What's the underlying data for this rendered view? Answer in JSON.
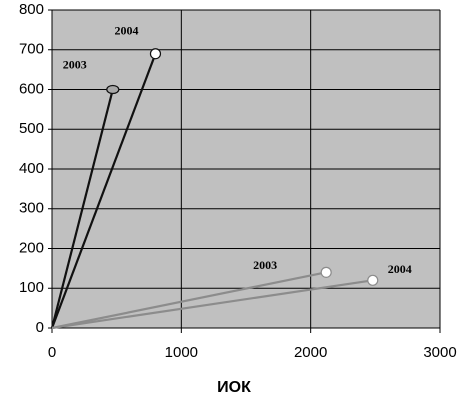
{
  "chart_data": {
    "type": "line",
    "x_label": "ИОК",
    "series": [
      {
        "name": "2003",
        "color": "#111111",
        "marker_fill": "#a8a8a8",
        "x": [
          0,
          470
        ],
        "values": [
          0,
          600
        ]
      },
      {
        "name": "2004",
        "color": "#111111",
        "marker_fill": "#ffffff",
        "x": [
          0,
          800
        ],
        "values": [
          0,
          690
        ]
      },
      {
        "name": "2003",
        "color": "#8c8c8c",
        "marker_fill": "#ffffff",
        "x": [
          0,
          2120
        ],
        "values": [
          0,
          140
        ]
      },
      {
        "name": "2004",
        "color": "#8c8c8c",
        "marker_fill": "#ffffff",
        "x": [
          0,
          2480
        ],
        "values": [
          0,
          120
        ]
      }
    ],
    "xlim": [
      0,
      3000
    ],
    "xticks": [
      0,
      1000,
      2000,
      3000
    ],
    "ylim": [
      0,
      800
    ],
    "yticks": [
      0,
      100,
      200,
      300,
      400,
      500,
      600,
      700,
      800
    ],
    "grid": true,
    "background": "#c0c0c0"
  }
}
